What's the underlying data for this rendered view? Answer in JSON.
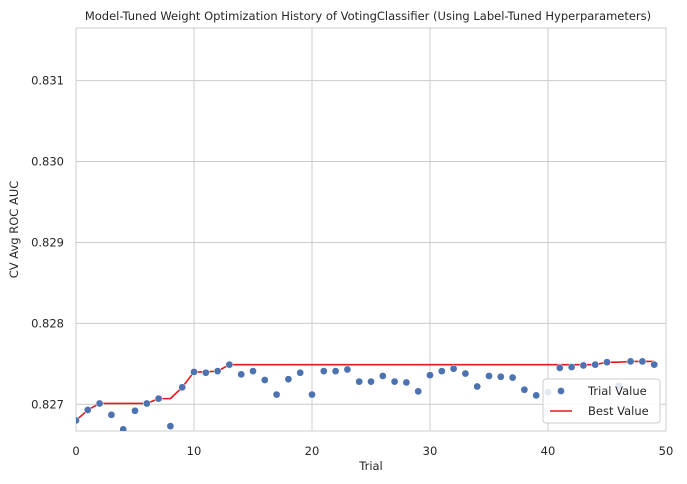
{
  "chart_data": {
    "type": "scatter",
    "title": "Model-Tuned Weight Optimization History of VotingClassifier (Using Label-Tuned Hyperparameters)",
    "xlabel": "Trial",
    "ylabel": "CV Avg ROC AUC",
    "xlim": [
      0,
      50
    ],
    "ylim": [
      0.82667,
      0.83165
    ],
    "xticks": [
      0,
      10,
      20,
      30,
      40,
      50
    ],
    "xtick_labels": [
      "0",
      "10",
      "20",
      "30",
      "40",
      "50"
    ],
    "yticks": [
      0.827,
      0.828,
      0.829,
      0.83,
      0.831
    ],
    "ytick_labels": [
      "0.827",
      "0.828",
      "0.829",
      "0.830",
      "0.831"
    ],
    "grid": true,
    "legend_position": "lower-right",
    "series": [
      {
        "name": "Trial Value",
        "kind": "scatter",
        "color": "#4c72b0",
        "x": [
          0,
          1,
          2,
          3,
          4,
          5,
          6,
          7,
          8,
          9,
          10,
          11,
          12,
          13,
          14,
          15,
          16,
          17,
          18,
          19,
          20,
          21,
          22,
          23,
          24,
          25,
          26,
          27,
          28,
          29,
          30,
          31,
          32,
          33,
          34,
          35,
          36,
          37,
          38,
          39,
          40,
          41,
          42,
          43,
          44,
          45,
          46,
          47,
          48,
          49
        ],
        "y": [
          0.8268,
          0.82693,
          0.82701,
          0.82687,
          0.82669,
          0.82692,
          0.82701,
          0.82707,
          0.82673,
          0.82721,
          0.8274,
          0.82739,
          0.82741,
          0.82749,
          0.82737,
          0.82741,
          0.8273,
          0.82712,
          0.82731,
          0.82739,
          0.82712,
          0.82741,
          0.82741,
          0.82743,
          0.82728,
          0.82728,
          0.82735,
          0.82728,
          0.82727,
          0.82716,
          0.82736,
          0.82741,
          0.82744,
          0.82738,
          0.82722,
          0.82735,
          0.82734,
          0.82733,
          0.82718,
          0.82711,
          0.82715,
          0.82745,
          0.82746,
          0.82748,
          0.82749,
          0.82752,
          0.82723,
          0.82753,
          0.82753,
          0.82749
        ]
      },
      {
        "name": "Best Value",
        "kind": "line",
        "color": "#e41a1c",
        "x": [
          0,
          1,
          2,
          3,
          4,
          5,
          6,
          7,
          8,
          9,
          10,
          11,
          12,
          13,
          14,
          15,
          16,
          17,
          18,
          19,
          20,
          21,
          22,
          23,
          24,
          25,
          26,
          27,
          28,
          29,
          30,
          31,
          32,
          33,
          34,
          35,
          36,
          37,
          38,
          39,
          40,
          41,
          42,
          43,
          44,
          45,
          46,
          47,
          48,
          49
        ],
        "y": [
          0.8268,
          0.82693,
          0.82701,
          0.82701,
          0.82701,
          0.82701,
          0.82701,
          0.82707,
          0.82707,
          0.82721,
          0.8274,
          0.8274,
          0.82741,
          0.82749,
          0.82749,
          0.82749,
          0.82749,
          0.82749,
          0.82749,
          0.82749,
          0.82749,
          0.82749,
          0.82749,
          0.82749,
          0.82749,
          0.82749,
          0.82749,
          0.82749,
          0.82749,
          0.82749,
          0.82749,
          0.82749,
          0.82749,
          0.82749,
          0.82749,
          0.82749,
          0.82749,
          0.82749,
          0.82749,
          0.82749,
          0.82749,
          0.82749,
          0.82749,
          0.82749,
          0.82749,
          0.82752,
          0.82752,
          0.82753,
          0.82753,
          0.82753
        ]
      }
    ]
  }
}
